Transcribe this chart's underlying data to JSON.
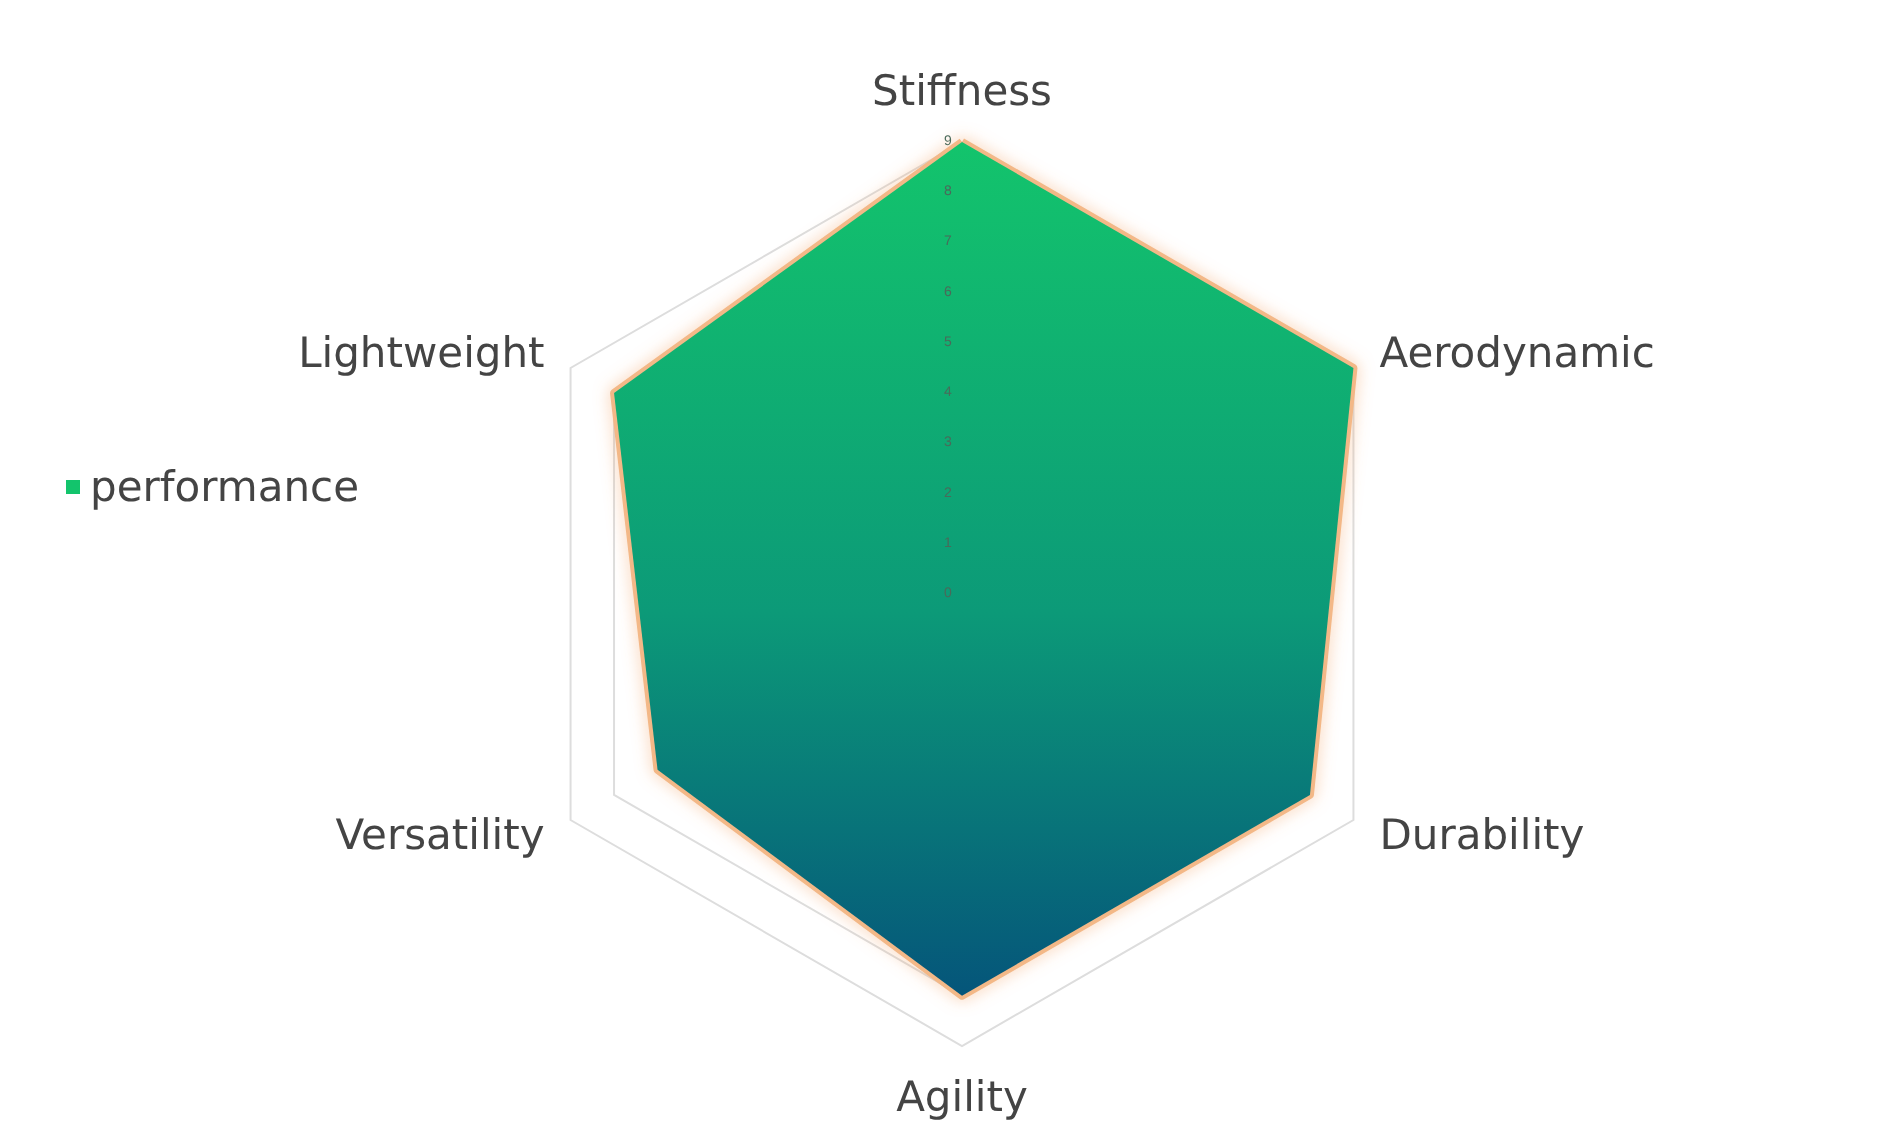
{
  "chart_data": {
    "type": "radar",
    "categories": [
      "Stiffness",
      "Aerodynamic",
      "Durability",
      "Agility",
      "Versatility",
      "Lightweight"
    ],
    "series": [
      {
        "name": "performance",
        "color": "#13c46c",
        "values": [
          9,
          9,
          8,
          8,
          7,
          8
        ]
      }
    ],
    "ylim": [
      0,
      9
    ],
    "yticks": [
      0,
      1,
      2,
      3,
      4,
      5,
      6,
      7,
      8,
      9
    ],
    "legend": "left"
  }
}
